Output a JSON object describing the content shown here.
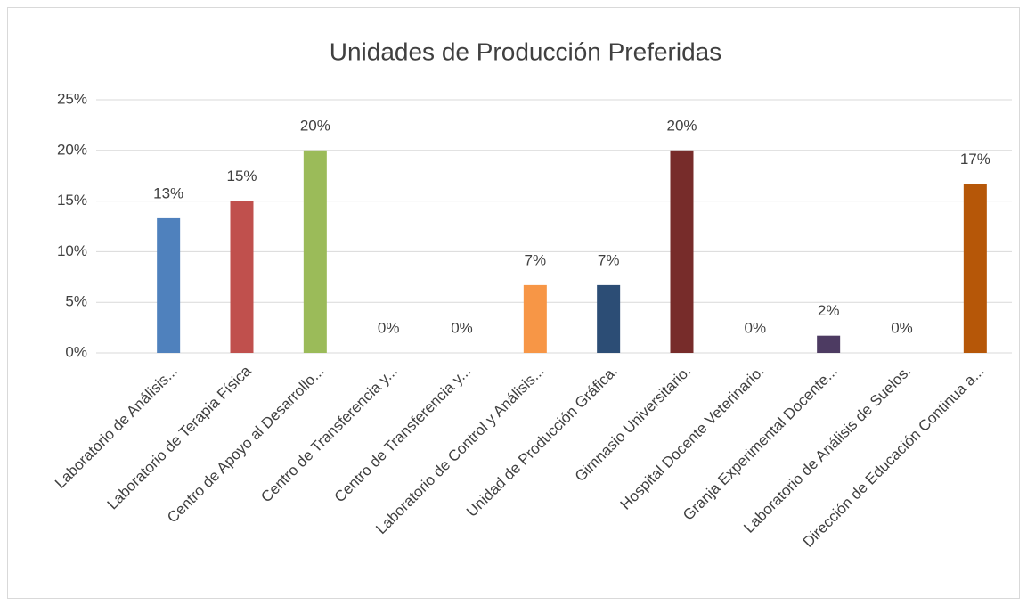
{
  "chart_data": {
    "type": "bar",
    "title": "Unidades de Producción Preferidas",
    "categories": [
      "Laboratorio de Análisis...",
      "Laboratorio de Terapia Física",
      "Centro de Apoyo al Desarrollo...",
      "Centro de Transferencia y...",
      "Centro de Transferencia y...",
      "Laboratorio de Control y Análisis...",
      "Unidad de Producción Gráfica.",
      "Gimnasio Universitario.",
      "Hospital Docente Veterinario.",
      "Granja Experimental Docente...",
      "Laboratorio de Análisis de Suelos.",
      "Dirección de Educación Continua a..."
    ],
    "values": [
      13.3,
      15,
      20,
      0,
      0,
      6.7,
      6.7,
      20,
      0,
      1.7,
      0,
      16.7
    ],
    "value_labels": [
      "13%",
      "15%",
      "20%",
      "0%",
      "0%",
      "7%",
      "7%",
      "20%",
      "0%",
      "2%",
      "0%",
      "17%"
    ],
    "colors": [
      "#4f81bd",
      "#c0504d",
      "#9bbb59",
      "#8064a2",
      "#4bacc6",
      "#f79646",
      "#2c4d75",
      "#772c2a",
      "#5f7530",
      "#4d3b62",
      "#276a7c",
      "#b65708"
    ],
    "ylim": [
      0,
      25
    ],
    "yticks": [
      {
        "value": 0,
        "label": "0%"
      },
      {
        "value": 5,
        "label": "5%"
      },
      {
        "value": 10,
        "label": "10%"
      },
      {
        "value": 15,
        "label": "15%"
      },
      {
        "value": 20,
        "label": "20%"
      },
      {
        "value": 25,
        "label": "25%"
      }
    ],
    "grid": true
  }
}
